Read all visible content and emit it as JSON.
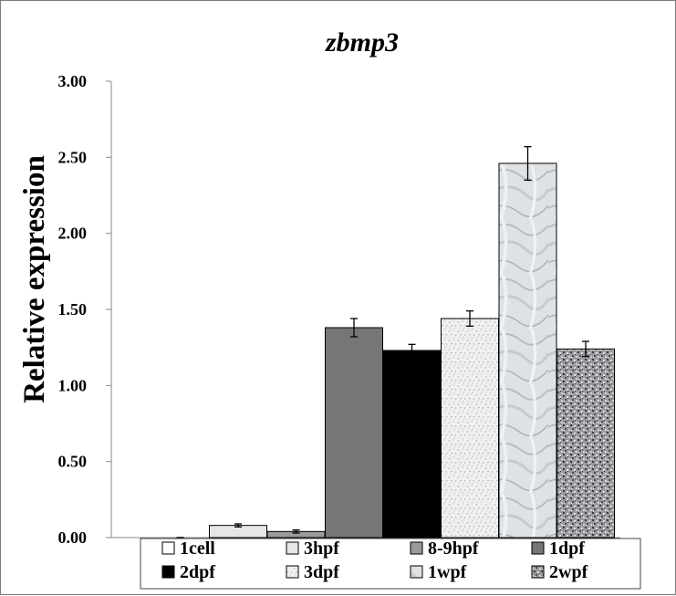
{
  "chart_data": {
    "type": "bar",
    "title": "zbmp3",
    "xlabel": "",
    "ylabel": "Relative expression",
    "ylim": [
      0,
      3
    ],
    "yticks": [
      "0.00",
      "0.50",
      "1.00",
      "1.50",
      "2.00",
      "2.50",
      "3.00"
    ],
    "grid": false,
    "legend_position": "bottom",
    "categories": [
      "1cell",
      "3hpf",
      "8-9hpf",
      "1dpf",
      "2dpf",
      "3dpf",
      "1wpf",
      "2wpf"
    ],
    "values": [
      0.0,
      0.08,
      0.04,
      1.38,
      1.23,
      1.44,
      2.46,
      1.24
    ],
    "errors": [
      0.0,
      0.01,
      0.01,
      0.06,
      0.04,
      0.05,
      0.11,
      0.05
    ],
    "colors": [
      "#ffffff",
      "#e6e6e6",
      "#9a9a9a",
      "#767676",
      "#000000",
      "#e9e9e9",
      "#d6d9dc",
      "#8e8e92"
    ],
    "patterns": [
      "plain",
      "plain",
      "plain",
      "plain",
      "plain",
      "speckle-light",
      "marble",
      "speckle-dark"
    ]
  }
}
